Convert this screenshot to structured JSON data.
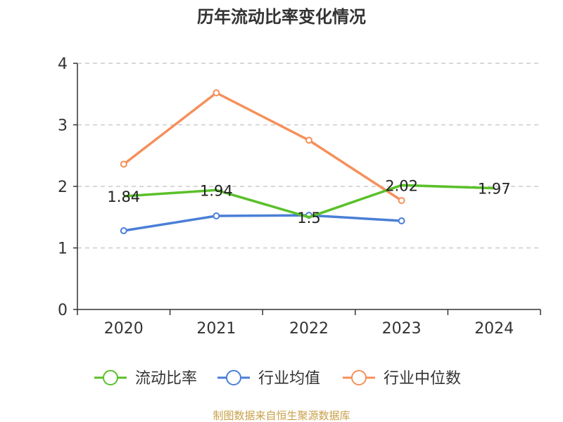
{
  "chart_data": {
    "type": "line",
    "title": "历年流动比率变化情况",
    "categories": [
      "2020",
      "2021",
      "2022",
      "2023",
      "2024"
    ],
    "ylim": [
      0,
      4
    ],
    "yticks": [
      0,
      1,
      2,
      3,
      4
    ],
    "grid": true,
    "legend_position": "bottom",
    "series": [
      {
        "name": "流动比率",
        "color": "#5ac02a",
        "values": [
          1.84,
          1.94,
          1.5,
          2.02,
          1.97
        ],
        "labels": [
          "1.84",
          "1.94",
          "1.5",
          "2.02",
          "1.97"
        ],
        "show_labels": true,
        "show_markers": false
      },
      {
        "name": "行业均值",
        "color": "#4a7fd6",
        "values": [
          1.28,
          1.52,
          1.53,
          1.44,
          null
        ],
        "show_labels": false,
        "show_markers": true
      },
      {
        "name": "行业中位数",
        "color": "#f5905a",
        "values": [
          2.36,
          3.52,
          2.75,
          1.77,
          null
        ],
        "show_labels": false,
        "show_markers": true
      }
    ]
  },
  "footer": {
    "source": "制图数据来自恒生聚源数据库"
  }
}
